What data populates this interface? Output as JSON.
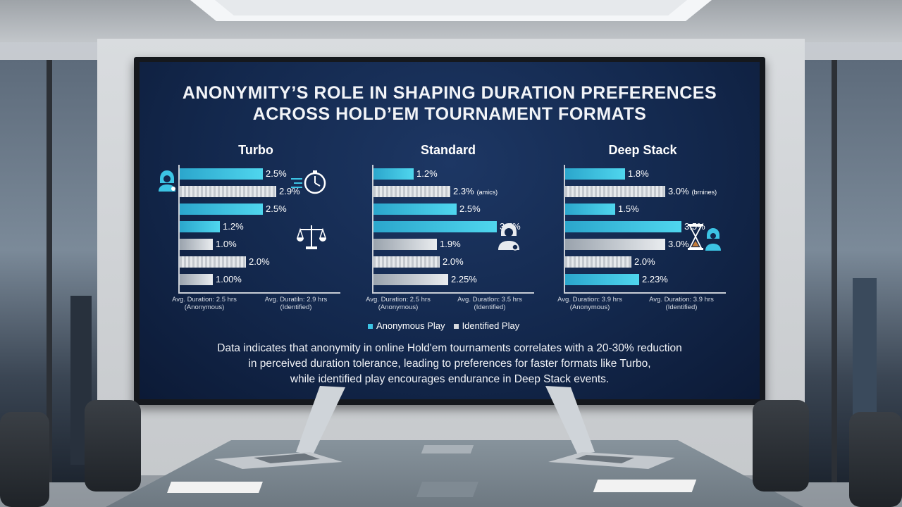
{
  "chart_data": {
    "type": "bar",
    "title": "ANONYMITY'S ROLE IN SHAPING DURATION PREFERENCES ACROSS HOLD'EM TOURNAMENT FORMATS",
    "title_line1": "ANONYMITY’S ROLE IN SHAPING DURATION PREFERENCES",
    "title_line2": "ACROSS HOLD’EM TOURNAMENT FORMATS",
    "legend": {
      "position": "bottom",
      "anonymous": "Anonymous Play",
      "identified": "Identified Play"
    },
    "colors": {
      "anonymous": "#3cc4e4",
      "identified": "#d6dadf"
    },
    "panels": [
      {
        "title": "Turbo",
        "bars": [
          {
            "series": "anonymous",
            "value": 2.5,
            "label": "2.5%",
            "note": ""
          },
          {
            "series": "identified",
            "value": 2.9,
            "label": "2.9%",
            "note": ""
          },
          {
            "series": "anonymous",
            "value": 2.5,
            "label": "2.5%",
            "note": ""
          },
          {
            "series": "anonymous",
            "value": 1.2,
            "label": "1.2%",
            "note": ""
          },
          {
            "series": "identified",
            "value": 1.0,
            "label": "1.0%",
            "note": ""
          },
          {
            "series": "identified",
            "value": 2.0,
            "label": "2.0%",
            "note": ""
          },
          {
            "series": "identified",
            "value": 1.0,
            "label": "1.00%",
            "note": ""
          }
        ],
        "footer_left": "Avg. Duration: 2.5 hrs (Anonymous)",
        "footer_right": "Avg. Duratiln: 2.9 hrs (Identified)"
      },
      {
        "title": "Standard",
        "bars": [
          {
            "series": "anonymous",
            "value": 1.2,
            "label": "1.2%",
            "note": ""
          },
          {
            "series": "identified",
            "value": 2.3,
            "label": "2.3%",
            "note": "(amics)"
          },
          {
            "series": "anonymous",
            "value": 2.5,
            "label": "2.5%",
            "note": ""
          },
          {
            "series": "anonymous",
            "value": 3.7,
            "label": "3.7%",
            "note": ""
          },
          {
            "series": "identified",
            "value": 1.9,
            "label": "1.9%",
            "note": ""
          },
          {
            "series": "identified",
            "value": 2.0,
            "label": "2.0%",
            "note": ""
          },
          {
            "series": "identified",
            "value": 2.25,
            "label": "2.25%",
            "note": ""
          }
        ],
        "footer_left": "Avg. Duration: 2.5 hrs (Anonymous)",
        "footer_right": "Avg. Duratlon: 3.5 hrs (Identified)"
      },
      {
        "title": "Deep Stack",
        "bars": [
          {
            "series": "anonymous",
            "value": 1.8,
            "label": "1.8%",
            "note": ""
          },
          {
            "series": "identified",
            "value": 3.0,
            "label": "3.0%",
            "note": "(brnines)"
          },
          {
            "series": "anonymous",
            "value": 1.5,
            "label": "1.5%",
            "note": ""
          },
          {
            "series": "anonymous",
            "value": 3.5,
            "label": "3.5%",
            "note": ""
          },
          {
            "series": "identified",
            "value": 3.0,
            "label": "3.0%",
            "note": ""
          },
          {
            "series": "identified",
            "value": 2.0,
            "label": "2.0%",
            "note": ""
          },
          {
            "series": "anonymous",
            "value": 2.23,
            "label": "2.23%",
            "note": ""
          }
        ],
        "footer_left": "Avg. Duration: 3.9 hrs (Anonymous)",
        "footer_right": "Avg. Duration: 3.9 hrs (Identified)"
      }
    ],
    "caption": [
      "Data indicates that anonymity in online Hold'em tournaments correlates with a 20-30% reduction",
      "in perceived duration tolerance, leading to preferences for faster formats like Turbo,",
      "while identified play encourages endurance in Deep Stack events."
    ]
  }
}
